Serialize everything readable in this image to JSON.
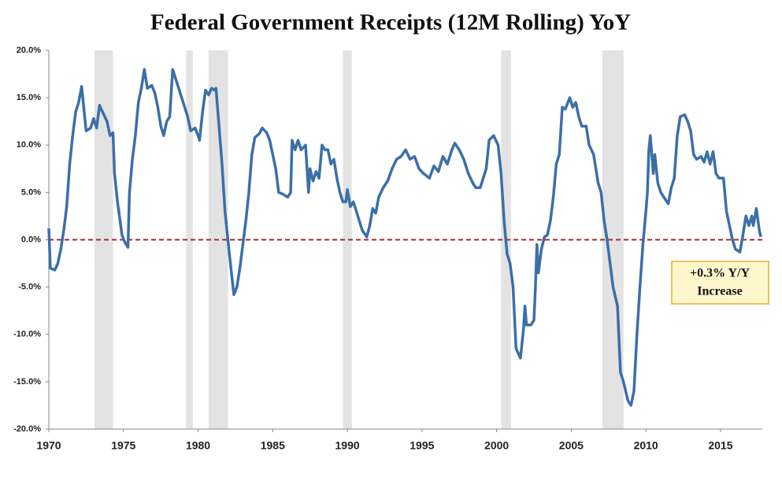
{
  "chart_data": {
    "type": "line",
    "title": "Federal Government Receipts (12M Rolling) YoY",
    "x": [
      1970.0,
      1970.1,
      1970.4,
      1970.6,
      1970.8,
      1971.0,
      1971.2,
      1971.4,
      1971.6,
      1971.8,
      1972.0,
      1972.2,
      1972.4,
      1972.5,
      1972.8,
      1973.0,
      1973.2,
      1973.4,
      1973.6,
      1973.9,
      1974.1,
      1974.3,
      1974.4,
      1974.6,
      1974.9,
      1975.1,
      1975.3,
      1975.4,
      1975.6,
      1975.8,
      1976.0,
      1976.2,
      1976.4,
      1976.6,
      1976.9,
      1977.1,
      1977.3,
      1977.5,
      1977.7,
      1977.9,
      1978.1,
      1978.2,
      1978.3,
      1978.5,
      1978.8,
      1979.0,
      1979.3,
      1979.5,
      1979.8,
      1980.0,
      1980.1,
      1980.3,
      1980.5,
      1980.7,
      1980.9,
      1981.1,
      1981.2,
      1981.4,
      1981.6,
      1981.8,
      1982.0,
      1982.2,
      1982.4,
      1982.6,
      1982.8,
      1983.0,
      1983.2,
      1983.4,
      1983.6,
      1983.8,
      1984.1,
      1984.3,
      1984.6,
      1984.8,
      1985.0,
      1985.2,
      1985.4,
      1985.7,
      1986.0,
      1986.2,
      1986.3,
      1986.5,
      1986.7,
      1986.9,
      1987.2,
      1987.4,
      1987.5,
      1987.7,
      1987.9,
      1988.1,
      1988.3,
      1988.5,
      1988.7,
      1988.9,
      1989.1,
      1989.3,
      1989.5,
      1989.7,
      1989.9,
      1990.0,
      1990.2,
      1990.4,
      1990.6,
      1990.8,
      1991.0,
      1991.3,
      1991.5,
      1991.7,
      1991.9,
      1992.1,
      1992.4,
      1992.7,
      1993.0,
      1993.3,
      1993.6,
      1993.9,
      1994.2,
      1994.5,
      1994.8,
      1995.1,
      1995.5,
      1995.8,
      1996.1,
      1996.4,
      1996.7,
      1997.0,
      1997.2,
      1997.5,
      1997.8,
      1998.1,
      1998.4,
      1998.6,
      1998.9,
      1999.1,
      1999.3,
      1999.5,
      1999.8,
      2000.1,
      2000.3,
      2000.5,
      2000.7,
      2000.9,
      2001.1,
      2001.3,
      2001.6,
      2001.8,
      2001.9,
      2002.0,
      2002.3,
      2002.5,
      2002.6,
      2002.7,
      2002.8,
      2003.0,
      2003.2,
      2003.4,
      2003.6,
      2003.8,
      2004.0,
      2004.2,
      2004.4,
      2004.6,
      2004.9,
      2005.1,
      2005.3,
      2005.5,
      2005.7,
      2006.0,
      2006.2,
      2006.5,
      2006.8,
      2007.0,
      2007.2,
      2007.4,
      2007.6,
      2007.8,
      2008.1,
      2008.3,
      2008.5,
      2008.8,
      2009.0,
      2009.2,
      2009.4,
      2009.6,
      2009.8,
      2010.0,
      2010.1,
      2010.2,
      2010.3,
      2010.5,
      2010.6,
      2010.8,
      2011.0,
      2011.2,
      2011.5,
      2011.7,
      2011.9,
      2012.1,
      2012.3,
      2012.6,
      2012.8,
      2013.0,
      2013.2,
      2013.4,
      2013.7,
      2013.9,
      2014.1,
      2014.3,
      2014.5,
      2014.7,
      2014.9,
      2015.2,
      2015.4,
      2015.6,
      2015.8,
      2016.0,
      2016.3,
      2016.5,
      2016.7,
      2016.9,
      2017.1,
      2017.2,
      2017.4,
      2017.6,
      2017.7
    ],
    "values": [
      1.2,
      -3,
      -3.2,
      -2.5,
      -1,
      1,
      3.5,
      8,
      11,
      13.5,
      14.5,
      16.2,
      13,
      11.5,
      11.8,
      12.8,
      11.8,
      14.2,
      13.5,
      12.5,
      11,
      11.3,
      7,
      4,
      0.5,
      -0.3,
      -0.8,
      5,
      8.5,
      11,
      14.5,
      16,
      18,
      16,
      16.3,
      15.5,
      14,
      12,
      11,
      12.5,
      13,
      15.5,
      18,
      17,
      15.5,
      14.5,
      13,
      11.5,
      11.8,
      11,
      10.5,
      13.5,
      15.8,
      15.3,
      16,
      15.8,
      16,
      12,
      8,
      3,
      0,
      -3,
      -5.8,
      -5,
      -3,
      -0.5,
      2,
      5,
      9,
      10.8,
      11.2,
      11.8,
      11.3,
      10.5,
      9,
      7.5,
      5,
      4.8,
      4.5,
      5,
      10.5,
      9.5,
      10.5,
      9.5,
      10,
      5,
      7.5,
      6.2,
      7.2,
      6.5,
      10,
      9.5,
      9.5,
      8,
      8.5,
      6.5,
      5,
      4,
      4,
      5.3,
      3.5,
      4,
      3,
      2,
      1,
      0.3,
      1.5,
      3.3,
      2.8,
      4.5,
      5.5,
      6.2,
      7.5,
      8.5,
      8.8,
      9.5,
      8.5,
      8.8,
      7.5,
      7,
      6.5,
      7.8,
      7.2,
      8.8,
      8,
      9.5,
      10.2,
      9.5,
      8.5,
      7,
      6,
      5.5,
      5.5,
      6.5,
      7.5,
      10.5,
      11,
      10,
      7,
      2,
      -1.5,
      -2.5,
      -5,
      -11.5,
      -12.5,
      -9.5,
      -7,
      -9,
      -9,
      -8.5,
      -5,
      -0.5,
      -3.5,
      -1,
      0.3,
      0.5,
      2,
      4.5,
      8,
      9,
      14,
      13.8,
      15,
      14,
      14.5,
      13,
      12,
      12,
      10,
      9,
      6,
      5,
      2,
      0,
      -2.5,
      -5,
      -7,
      -14,
      -15,
      -17,
      -17.5,
      -16,
      -10,
      -5,
      -0.5,
      3,
      5,
      9.5,
      11,
      7,
      9,
      6,
      5,
      4.5,
      3.8,
      5.5,
      6.5,
      11,
      13,
      13.2,
      12.5,
      11.5,
      9,
      8.5,
      8.8,
      8.2,
      9.3,
      8,
      9.3,
      7,
      6.5,
      6.5,
      3,
      1.5,
      0,
      -1,
      -1.3,
      0.5,
      2.5,
      1.5,
      2.5,
      1.5,
      3.3,
      1,
      0.3
    ],
    "color": "#3b6fa8",
    "xlim": [
      1970,
      2017.8
    ],
    "xticks": [
      1970,
      1975,
      1980,
      1985,
      1990,
      1995,
      2000,
      2005,
      2010,
      2015
    ],
    "ylim": [
      -20,
      20
    ],
    "yticks": [
      {
        "value": -20,
        "label": "-20.0%"
      },
      {
        "value": -15,
        "label": "-15.0%"
      },
      {
        "value": -10,
        "label": "-10.0%"
      },
      {
        "value": -5,
        "label": "-5.0%"
      },
      {
        "value": 0,
        "label": "0.0%"
      },
      {
        "value": 5,
        "label": "5.0%"
      },
      {
        "value": 10,
        "label": "10.0%"
      },
      {
        "value": 15,
        "label": "15.0%"
      },
      {
        "value": 20,
        "label": "20.0%"
      }
    ],
    "reference_line": 0,
    "reference_line_color": "#a52a2a",
    "shaded_periods": [
      [
        1973.06,
        1974.3
      ],
      [
        1979.2,
        1979.65
      ],
      [
        1980.7,
        1982.0
      ],
      [
        1989.7,
        1990.3
      ],
      [
        2000.3,
        2000.96
      ],
      [
        2007.08,
        2008.5
      ]
    ],
    "shade_color": "#e3e3e3",
    "annotation": [
      "+0.3% Y/Y",
      "Increase"
    ]
  }
}
